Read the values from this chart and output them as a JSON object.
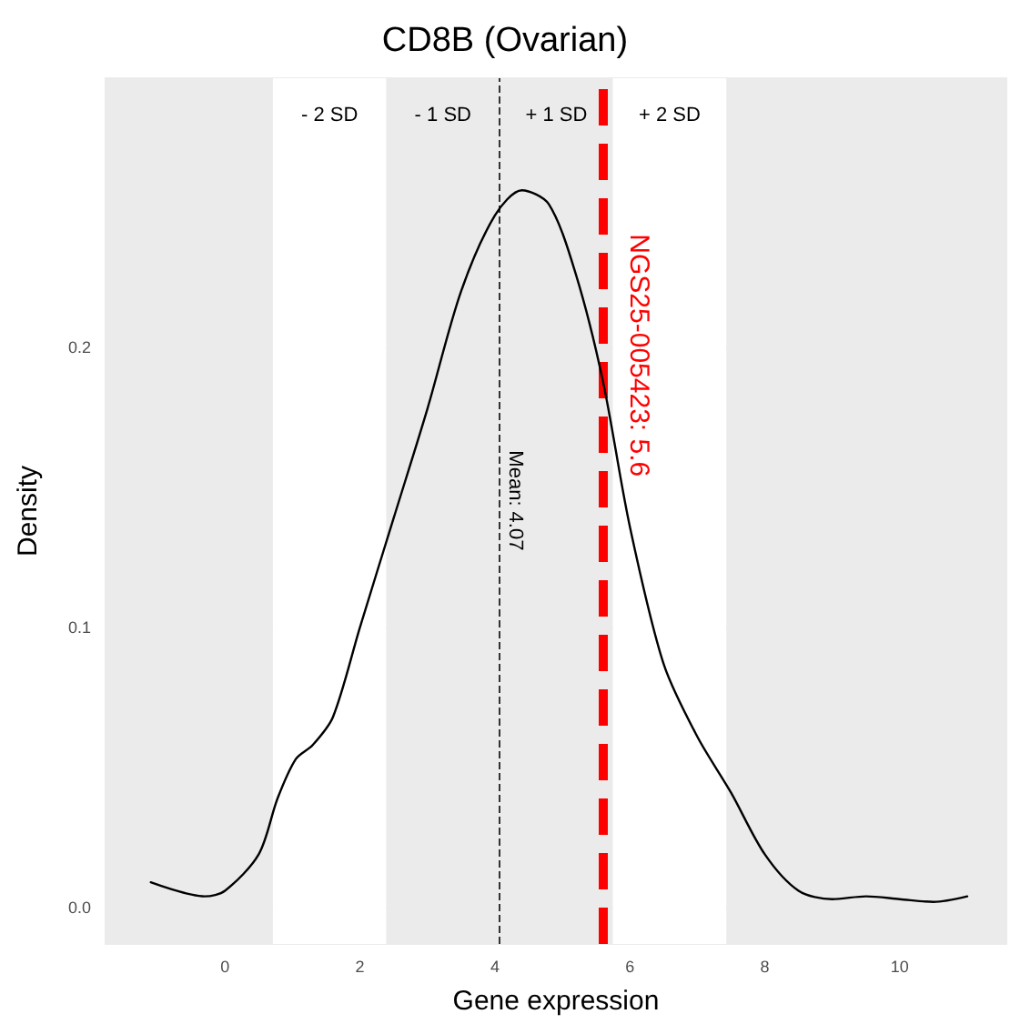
{
  "chart_data": {
    "type": "line",
    "title": "CD8B (Ovarian)",
    "xlabel": "Gene expression",
    "ylabel": "Density",
    "x": [
      -1.1,
      -0.3,
      0,
      0.5,
      0.78,
      1.05,
      1.3,
      1.6,
      2,
      2.5,
      3,
      3.5,
      4,
      4.4,
      4.8,
      5.2,
      5.6,
      6,
      6.5,
      7,
      7.5,
      8,
      8.5,
      9,
      9.5,
      10,
      10.5,
      11
    ],
    "series": [
      {
        "color": "#000000",
        "values": [
          0.009,
          0.004,
          0.006,
          0.019,
          0.039,
          0.053,
          0.058,
          0.068,
          0.1,
          0.139,
          0.178,
          0.22,
          0.247,
          0.256,
          0.251,
          0.226,
          0.188,
          0.136,
          0.087,
          0.061,
          0.041,
          0.019,
          0.006,
          0.003,
          0.004,
          0.003,
          0.002,
          0.004
        ]
      }
    ],
    "xlim": [
      -1.77,
      11.58
    ],
    "ylim": [
      -0.013,
      0.296
    ],
    "xticks": [
      0,
      2,
      4,
      6,
      8,
      10
    ],
    "yticks": [
      {
        "value": 0,
        "label": "0.0"
      },
      0.1,
      0.2
    ],
    "grid": true,
    "marker": "none",
    "line_style": "solid",
    "bands": [
      {
        "axis": "x",
        "from": -1.77,
        "to": 0.71,
        "color": "#ebebeb"
      },
      {
        "axis": "x",
        "from": 0.71,
        "to": 2.39,
        "label": "- 2 SD",
        "color": "#ffffff"
      },
      {
        "axis": "x",
        "from": 2.39,
        "to": 4.07,
        "label": "- 1 SD",
        "color": "#ebebeb"
      },
      {
        "axis": "x",
        "from": 4.07,
        "to": 5.75,
        "label": "+ 1 SD",
        "color": "#ebebeb"
      },
      {
        "axis": "x",
        "from": 5.75,
        "to": 7.43,
        "label": "+ 2 SD",
        "color": "#ffffff"
      },
      {
        "axis": "x",
        "from": 7.43,
        "to": 11.58,
        "color": "#ebebeb"
      }
    ],
    "ref_lines": [
      {
        "axis": "x",
        "value": 4.07,
        "label": "Mean: 4.07",
        "color": "#333333",
        "line_style": "dashed"
      },
      {
        "axis": "x",
        "value": 5.6,
        "label": "NGS25-005423: 5.6",
        "color": "#ff0000",
        "line_style": "dashed"
      }
    ]
  }
}
